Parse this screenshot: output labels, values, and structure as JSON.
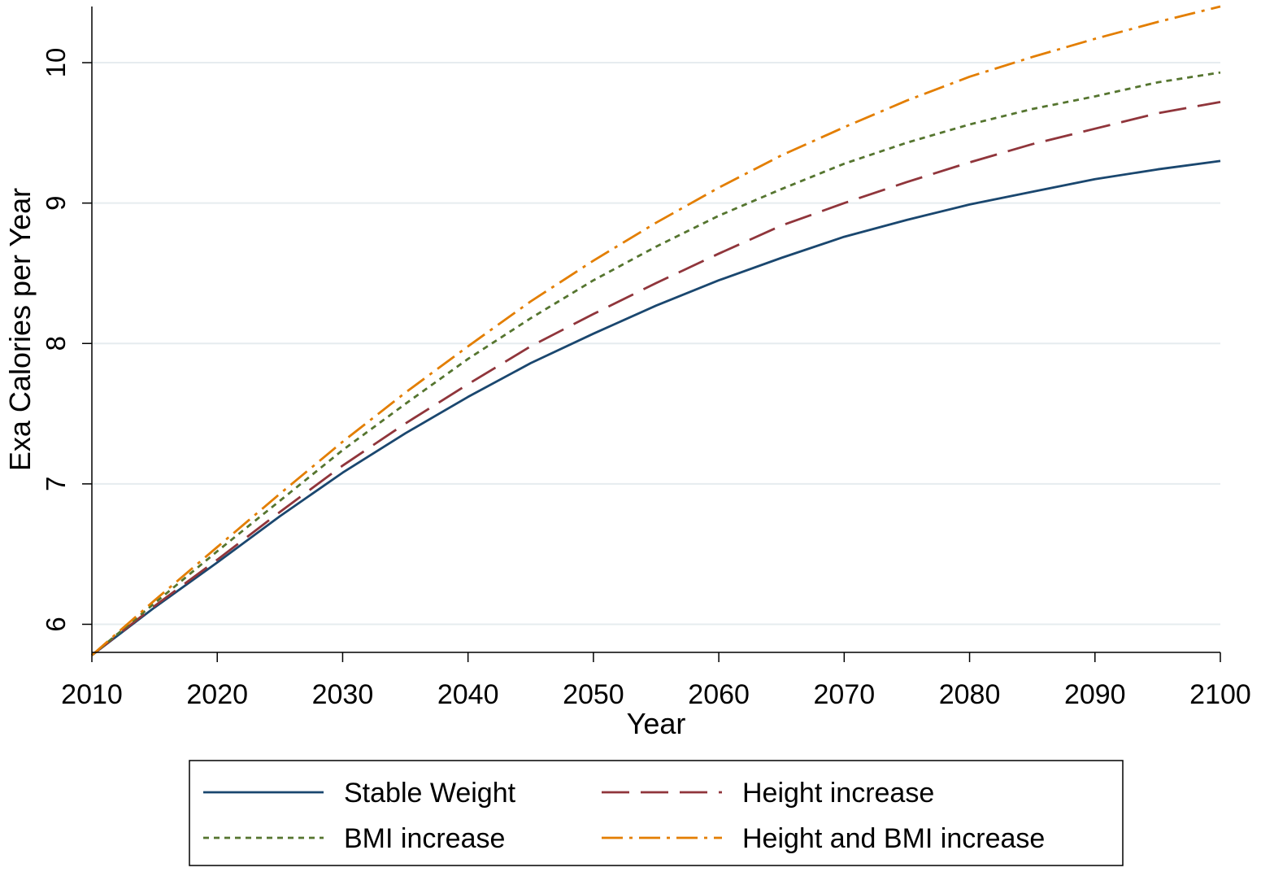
{
  "chart_data": {
    "type": "line",
    "title": "",
    "xlabel": "Year",
    "ylabel": "Exa Calories per Year",
    "xlim": [
      2010,
      2100
    ],
    "ylim": [
      5.8,
      10.4
    ],
    "xticks": [
      2010,
      2020,
      2030,
      2040,
      2050,
      2060,
      2070,
      2080,
      2090,
      2100
    ],
    "yticks": [
      6,
      7,
      8,
      9,
      10
    ],
    "grid": "horizontal",
    "legend_position": "bottom",
    "x": [
      2010,
      2015,
      2020,
      2025,
      2030,
      2035,
      2040,
      2045,
      2050,
      2055,
      2060,
      2065,
      2070,
      2075,
      2080,
      2085,
      2090,
      2095,
      2100
    ],
    "series": [
      {
        "name": "Stable Weight",
        "color": "#1a476f",
        "dash": "solid",
        "values": [
          5.78,
          6.12,
          6.44,
          6.77,
          7.08,
          7.36,
          7.62,
          7.86,
          8.07,
          8.27,
          8.45,
          8.61,
          8.76,
          8.88,
          8.99,
          9.08,
          9.17,
          9.24,
          9.3
        ]
      },
      {
        "name": "Height increase",
        "color": "#90353b",
        "dash": "long",
        "values": [
          5.78,
          6.13,
          6.46,
          6.8,
          7.13,
          7.43,
          7.71,
          7.98,
          8.21,
          8.43,
          8.64,
          8.84,
          9.0,
          9.15,
          9.29,
          9.42,
          9.53,
          9.64,
          9.72
        ]
      },
      {
        "name": "BMI increase",
        "color": "#55752f",
        "dash": "short",
        "values": [
          5.78,
          6.15,
          6.52,
          6.88,
          7.24,
          7.57,
          7.89,
          8.18,
          8.45,
          8.69,
          8.91,
          9.1,
          9.28,
          9.43,
          9.56,
          9.67,
          9.76,
          9.86,
          9.93
        ]
      },
      {
        "name": "Height and BMI increase",
        "color": "#e37e00",
        "dash": "dashdot",
        "values": [
          5.78,
          6.17,
          6.55,
          6.93,
          7.3,
          7.65,
          7.98,
          8.3,
          8.59,
          8.86,
          9.11,
          9.34,
          9.54,
          9.73,
          9.9,
          10.04,
          10.17,
          10.29,
          10.4
        ]
      }
    ]
  }
}
